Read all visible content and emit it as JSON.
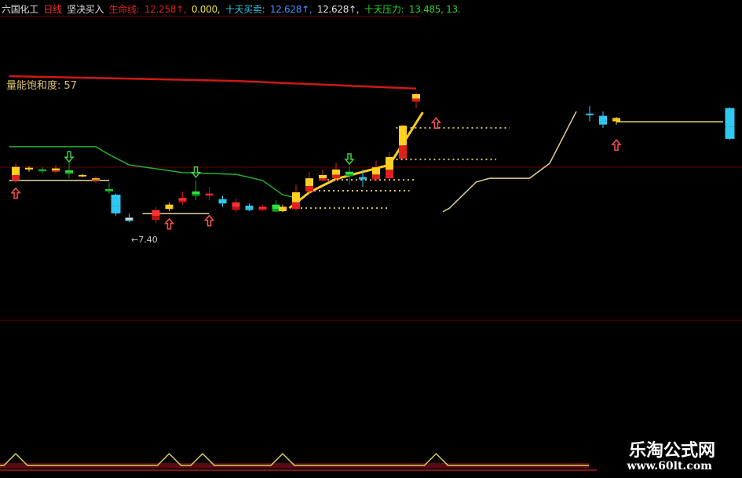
{
  "header": {
    "stock_name": "六国化工",
    "period": "日线",
    "signal": "坚决买入",
    "lifeline_label": "生命线:",
    "lifeline_value": "12.258↑,",
    "lifeline_value2": "0.000,",
    "ten_day_trade_label": "十天买卖:",
    "ten_day_trade_value": "12.628↑,",
    "ten_day_trade_value2": "12.628↑,",
    "ten_day_pressure_label": "十天压力:",
    "ten_day_pressure_value": "13.485, 13.",
    "colors": {
      "name": "#e0e0e0",
      "period": "#ff3030",
      "lifeline": "#e02020",
      "zero": "#e8e040",
      "trade": "#30c0e0",
      "trade_value": "#4090ff",
      "pressure": "#30d030"
    }
  },
  "volume_saturation": {
    "label": "量能饱和度:",
    "value": "57"
  },
  "low_annotation": "←7.40",
  "watermark": {
    "title": "乐淘公式网",
    "url": "www.60lt.com"
  },
  "chart_data": {
    "type": "candlestick",
    "x_unit": "bar index",
    "y_unit": "price",
    "candles": [
      {
        "i": 0,
        "o": 9.3,
        "c": 9.92,
        "h": 10.1,
        "l": 9.2,
        "color": "red-yellow"
      },
      {
        "i": 2,
        "o": 9.8,
        "c": 9.88,
        "h": 9.95,
        "l": 9.7,
        "color": "yellow"
      },
      {
        "i": 4,
        "o": 9.8,
        "c": 9.72,
        "h": 9.9,
        "l": 9.6,
        "color": "green"
      },
      {
        "i": 6,
        "o": 9.7,
        "c": 9.85,
        "h": 10.0,
        "l": 9.6,
        "color": "red-yellow"
      },
      {
        "i": 8,
        "o": 9.76,
        "c": 9.6,
        "h": 10.1,
        "l": 9.4,
        "color": "green"
      },
      {
        "i": 10,
        "o": 9.5,
        "c": 9.55,
        "h": 9.6,
        "l": 9.45,
        "color": "yellow"
      },
      {
        "i": 12,
        "o": 9.3,
        "c": 9.4,
        "h": 9.5,
        "l": 9.2,
        "color": "red-yellow"
      },
      {
        "i": 14,
        "o": 8.9,
        "c": 8.8,
        "h": 9.2,
        "l": 8.7,
        "color": "green"
      },
      {
        "i": 15,
        "o": 8.65,
        "c": 7.8,
        "h": 8.7,
        "l": 7.7,
        "color": "cyan"
      },
      {
        "i": 17,
        "o": 7.6,
        "c": 7.45,
        "h": 7.8,
        "l": 7.4,
        "color": "cyan-white"
      },
      {
        "i": 21,
        "o": 7.5,
        "c": 7.95,
        "h": 8.1,
        "l": 7.35,
        "color": "red"
      },
      {
        "i": 23,
        "o": 8.0,
        "c": 8.2,
        "h": 8.3,
        "l": 7.9,
        "color": "yellow"
      },
      {
        "i": 25,
        "o": 8.3,
        "c": 8.5,
        "h": 8.8,
        "l": 8.2,
        "color": "red"
      },
      {
        "i": 27,
        "o": 8.8,
        "c": 8.6,
        "h": 9.3,
        "l": 8.4,
        "color": "green"
      },
      {
        "i": 29,
        "o": 8.7,
        "c": 8.6,
        "h": 9.0,
        "l": 8.4,
        "color": "red"
      },
      {
        "i": 31,
        "o": 8.45,
        "c": 8.25,
        "h": 8.6,
        "l": 8.1,
        "color": "cyan"
      },
      {
        "i": 33,
        "o": 8.3,
        "c": 7.95,
        "h": 8.5,
        "l": 7.85,
        "color": "red"
      },
      {
        "i": 35,
        "o": 8.15,
        "c": 7.95,
        "h": 8.25,
        "l": 7.9,
        "color": "cyan"
      },
      {
        "i": 37,
        "o": 8.1,
        "c": 7.95,
        "h": 8.2,
        "l": 7.9,
        "color": "red"
      },
      {
        "i": 39,
        "o": 8.2,
        "c": 7.88,
        "h": 8.4,
        "l": 7.85,
        "color": "green"
      },
      {
        "i": 40,
        "o": 7.9,
        "c": 8.1,
        "h": 8.2,
        "l": 7.85,
        "color": "yellow"
      },
      {
        "i": 42,
        "o": 8.0,
        "c": 8.76,
        "h": 9.1,
        "l": 7.95,
        "color": "red-yellow"
      },
      {
        "i": 44,
        "o": 8.8,
        "c": 9.4,
        "h": 9.7,
        "l": 8.7,
        "color": "red-yellow"
      },
      {
        "i": 46,
        "o": 9.3,
        "c": 9.55,
        "h": 9.8,
        "l": 9.25,
        "color": "red-yellow"
      },
      {
        "i": 48,
        "o": 9.4,
        "c": 9.8,
        "h": 10.1,
        "l": 9.3,
        "color": "red-yellow"
      },
      {
        "i": 50,
        "o": 9.7,
        "c": 9.5,
        "h": 9.9,
        "l": 9.1,
        "color": "green"
      },
      {
        "i": 52,
        "o": 9.45,
        "c": 9.35,
        "h": 9.8,
        "l": 9.0,
        "color": "cyan"
      },
      {
        "i": 54,
        "o": 9.35,
        "c": 9.9,
        "h": 10.2,
        "l": 9.25,
        "color": "red-yellow"
      },
      {
        "i": 56,
        "o": 9.4,
        "c": 10.37,
        "h": 10.6,
        "l": 9.35,
        "color": "red-yellow"
      },
      {
        "i": 58,
        "o": 10.3,
        "c": 11.8,
        "h": 11.85,
        "l": 10.25,
        "color": "red-yellow"
      },
      {
        "i": 60,
        "o": 12.9,
        "c": 13.24,
        "h": 13.3,
        "l": 12.6,
        "color": "red-yellow"
      },
      {
        "i": 86,
        "o": 12.35,
        "c": 12.35,
        "h": 12.7,
        "l": 12.0,
        "color": "cyan"
      },
      {
        "i": 88,
        "o": 12.25,
        "c": 11.85,
        "h": 12.45,
        "l": 11.7,
        "color": "cyan"
      },
      {
        "i": 90,
        "o": 12.0,
        "c": 12.15,
        "h": 12.2,
        "l": 11.85,
        "color": "yellow"
      },
      {
        "i": 107,
        "o": 12.6,
        "c": 11.2,
        "h": 12.65,
        "l": 11.15,
        "color": "cyan"
      }
    ],
    "lines": {
      "pressure_line": [
        [
          -1,
          14.06
        ],
        [
          33,
          13.84
        ],
        [
          60,
          13.49
        ]
      ],
      "ten_day_line": [
        [
          -1,
          10.84
        ],
        [
          12,
          10.84
        ],
        [
          14,
          10.48
        ],
        [
          17,
          10.01
        ],
        [
          25,
          9.66
        ],
        [
          33,
          9.58
        ],
        [
          37,
          9.3
        ],
        [
          40,
          8.65
        ],
        [
          42,
          8.51
        ]
      ],
      "rising_trend": [
        [
          41,
          8.04
        ],
        [
          44,
          8.76
        ],
        [
          48,
          9.37
        ],
        [
          56,
          10.01
        ],
        [
          61,
          12.41
        ]
      ],
      "right_curve": [
        [
          64,
          7.87
        ],
        [
          65,
          8.04
        ],
        [
          69,
          9.23
        ],
        [
          71,
          9.4
        ],
        [
          77,
          9.4
        ],
        [
          80,
          10.08
        ],
        [
          84,
          12.45
        ]
      ],
      "support_left": [
        [
          -1,
          9.3
        ],
        [
          14,
          9.3
        ]
      ],
      "support_low": [
        [
          19,
          7.79
        ],
        [
          29,
          7.79
        ]
      ],
      "support_right": [
        [
          90,
          11.98
        ],
        [
          106,
          11.98
        ]
      ]
    },
    "dotted_levels": [
      {
        "price": 11.7,
        "from": 57,
        "to": 74
      },
      {
        "price": 10.26,
        "from": 57,
        "to": 72
      },
      {
        "price": 9.33,
        "from": 46,
        "to": 60
      },
      {
        "price": 8.83,
        "from": 44,
        "to": 59
      },
      {
        "price": 8.04,
        "from": 42,
        "to": 56
      }
    ],
    "buy_arrows": [
      0,
      23,
      29,
      63,
      90
    ],
    "buy_arrow_prices": [
      8.7,
      7.3,
      7.45,
      11.9,
      10.9
    ],
    "sell_arrows": [
      8,
      27,
      50
    ],
    "sell_arrow_prices": [
      10.4,
      9.7,
      10.3
    ],
    "indicator_peaks": [
      0,
      23,
      28,
      40,
      63
    ],
    "ylim": [
      4.0,
      16.4
    ],
    "xlim": [
      -2,
      108
    ]
  }
}
